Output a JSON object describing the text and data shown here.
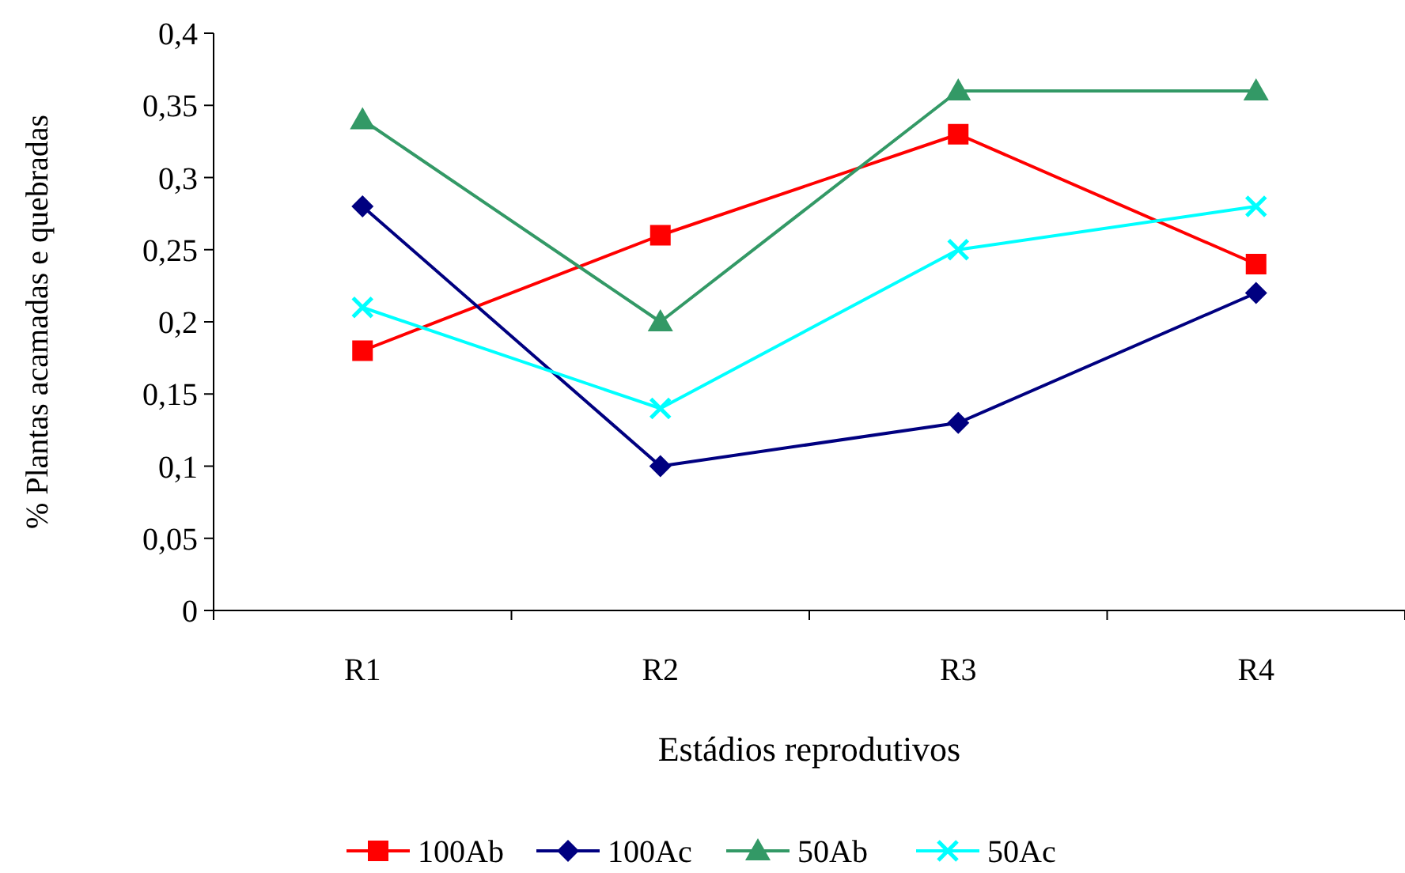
{
  "chart_data": {
    "type": "line",
    "xlabel": "Estádios reprodutivos",
    "ylabel": "% Plantas acamadas e quebradas",
    "categories": [
      "R1",
      "R2",
      "R3",
      "R4"
    ],
    "ylim": [
      0,
      0.4
    ],
    "yticks": [
      0,
      {
        "value": 0.05,
        "label": "0,05"
      },
      {
        "value": 0.1,
        "label": "0,1"
      },
      {
        "value": 0.15,
        "label": "0,15"
      },
      {
        "value": 0.2,
        "label": "0,2"
      },
      {
        "value": 0.25,
        "label": "0,25"
      },
      {
        "value": 0.3,
        "label": "0,3"
      },
      {
        "value": 0.35,
        "label": "0,35"
      },
      {
        "value": 0.4,
        "label": "0,4"
      }
    ],
    "grid": false,
    "legend": "bottom",
    "line_style": "solid",
    "series": [
      {
        "name": "100Ab",
        "color": "#ff0000",
        "marker": "square",
        "values": [
          0.18,
          0.26,
          0.33,
          0.24
        ]
      },
      {
        "name": "100Ac",
        "color": "#000080",
        "marker": "diamond",
        "values": [
          0.28,
          0.1,
          0.13,
          0.22
        ]
      },
      {
        "name": "50Ab",
        "color": "#339966",
        "marker": "triangle",
        "values": [
          0.34,
          0.2,
          0.36,
          0.36
        ]
      },
      {
        "name": "50Ac",
        "color": "#00ffff",
        "marker": "cross",
        "values": [
          0.21,
          0.14,
          0.25,
          0.28
        ]
      }
    ]
  }
}
